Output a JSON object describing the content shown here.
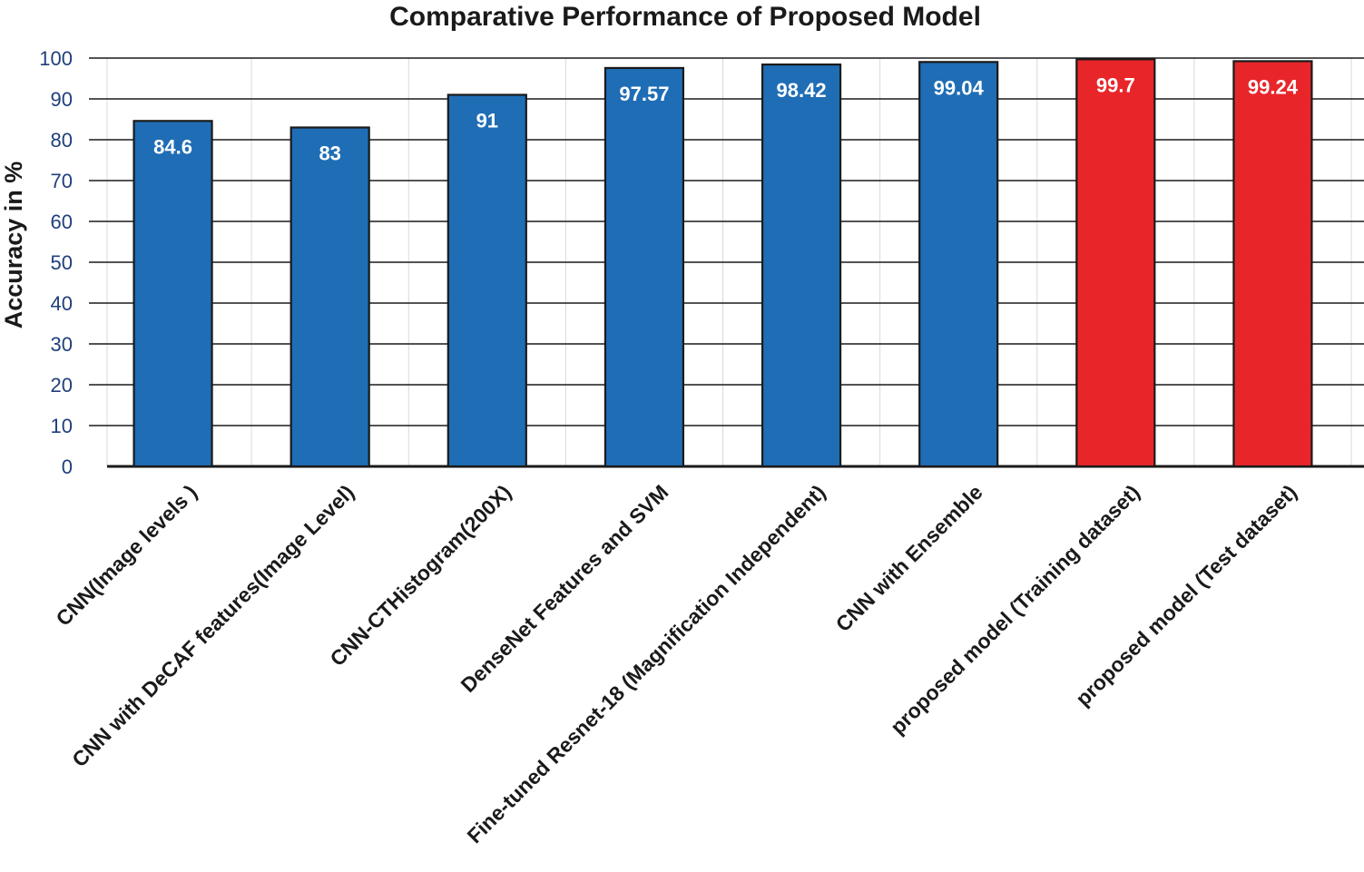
{
  "chart_data": {
    "type": "bar",
    "title": "Comparative Performance of Proposed Model",
    "xlabel": "",
    "ylabel": "Accuracy in %",
    "ylim": [
      0,
      100
    ],
    "yticks": [
      0,
      10,
      20,
      30,
      40,
      50,
      60,
      70,
      80,
      90,
      100
    ],
    "grid": true,
    "categories": [
      "CNN(Image levels )",
      "CNN with DeCAF features(Image Level)",
      "CNN-CTHistogram(200X)",
      "DenseNet Features and SVM",
      "Fine-tuned Resnet-18 (Magnification Independent)",
      "CNN with Ensemble",
      "proposed model (Training dataset)",
      "proposed model (Test dataset)"
    ],
    "values": [
      84.6,
      83,
      91,
      97.57,
      98.42,
      99.04,
      99.7,
      99.24
    ],
    "data_labels": [
      "84.6",
      "83",
      "91",
      "97.57",
      "98.42",
      "99.04",
      "99.7",
      "99.24"
    ],
    "bar_colors": [
      "#1f6db5",
      "#1f6db5",
      "#1f6db5",
      "#1f6db5",
      "#1f6db5",
      "#1f6db5",
      "#e8262a",
      "#e8262a"
    ]
  }
}
